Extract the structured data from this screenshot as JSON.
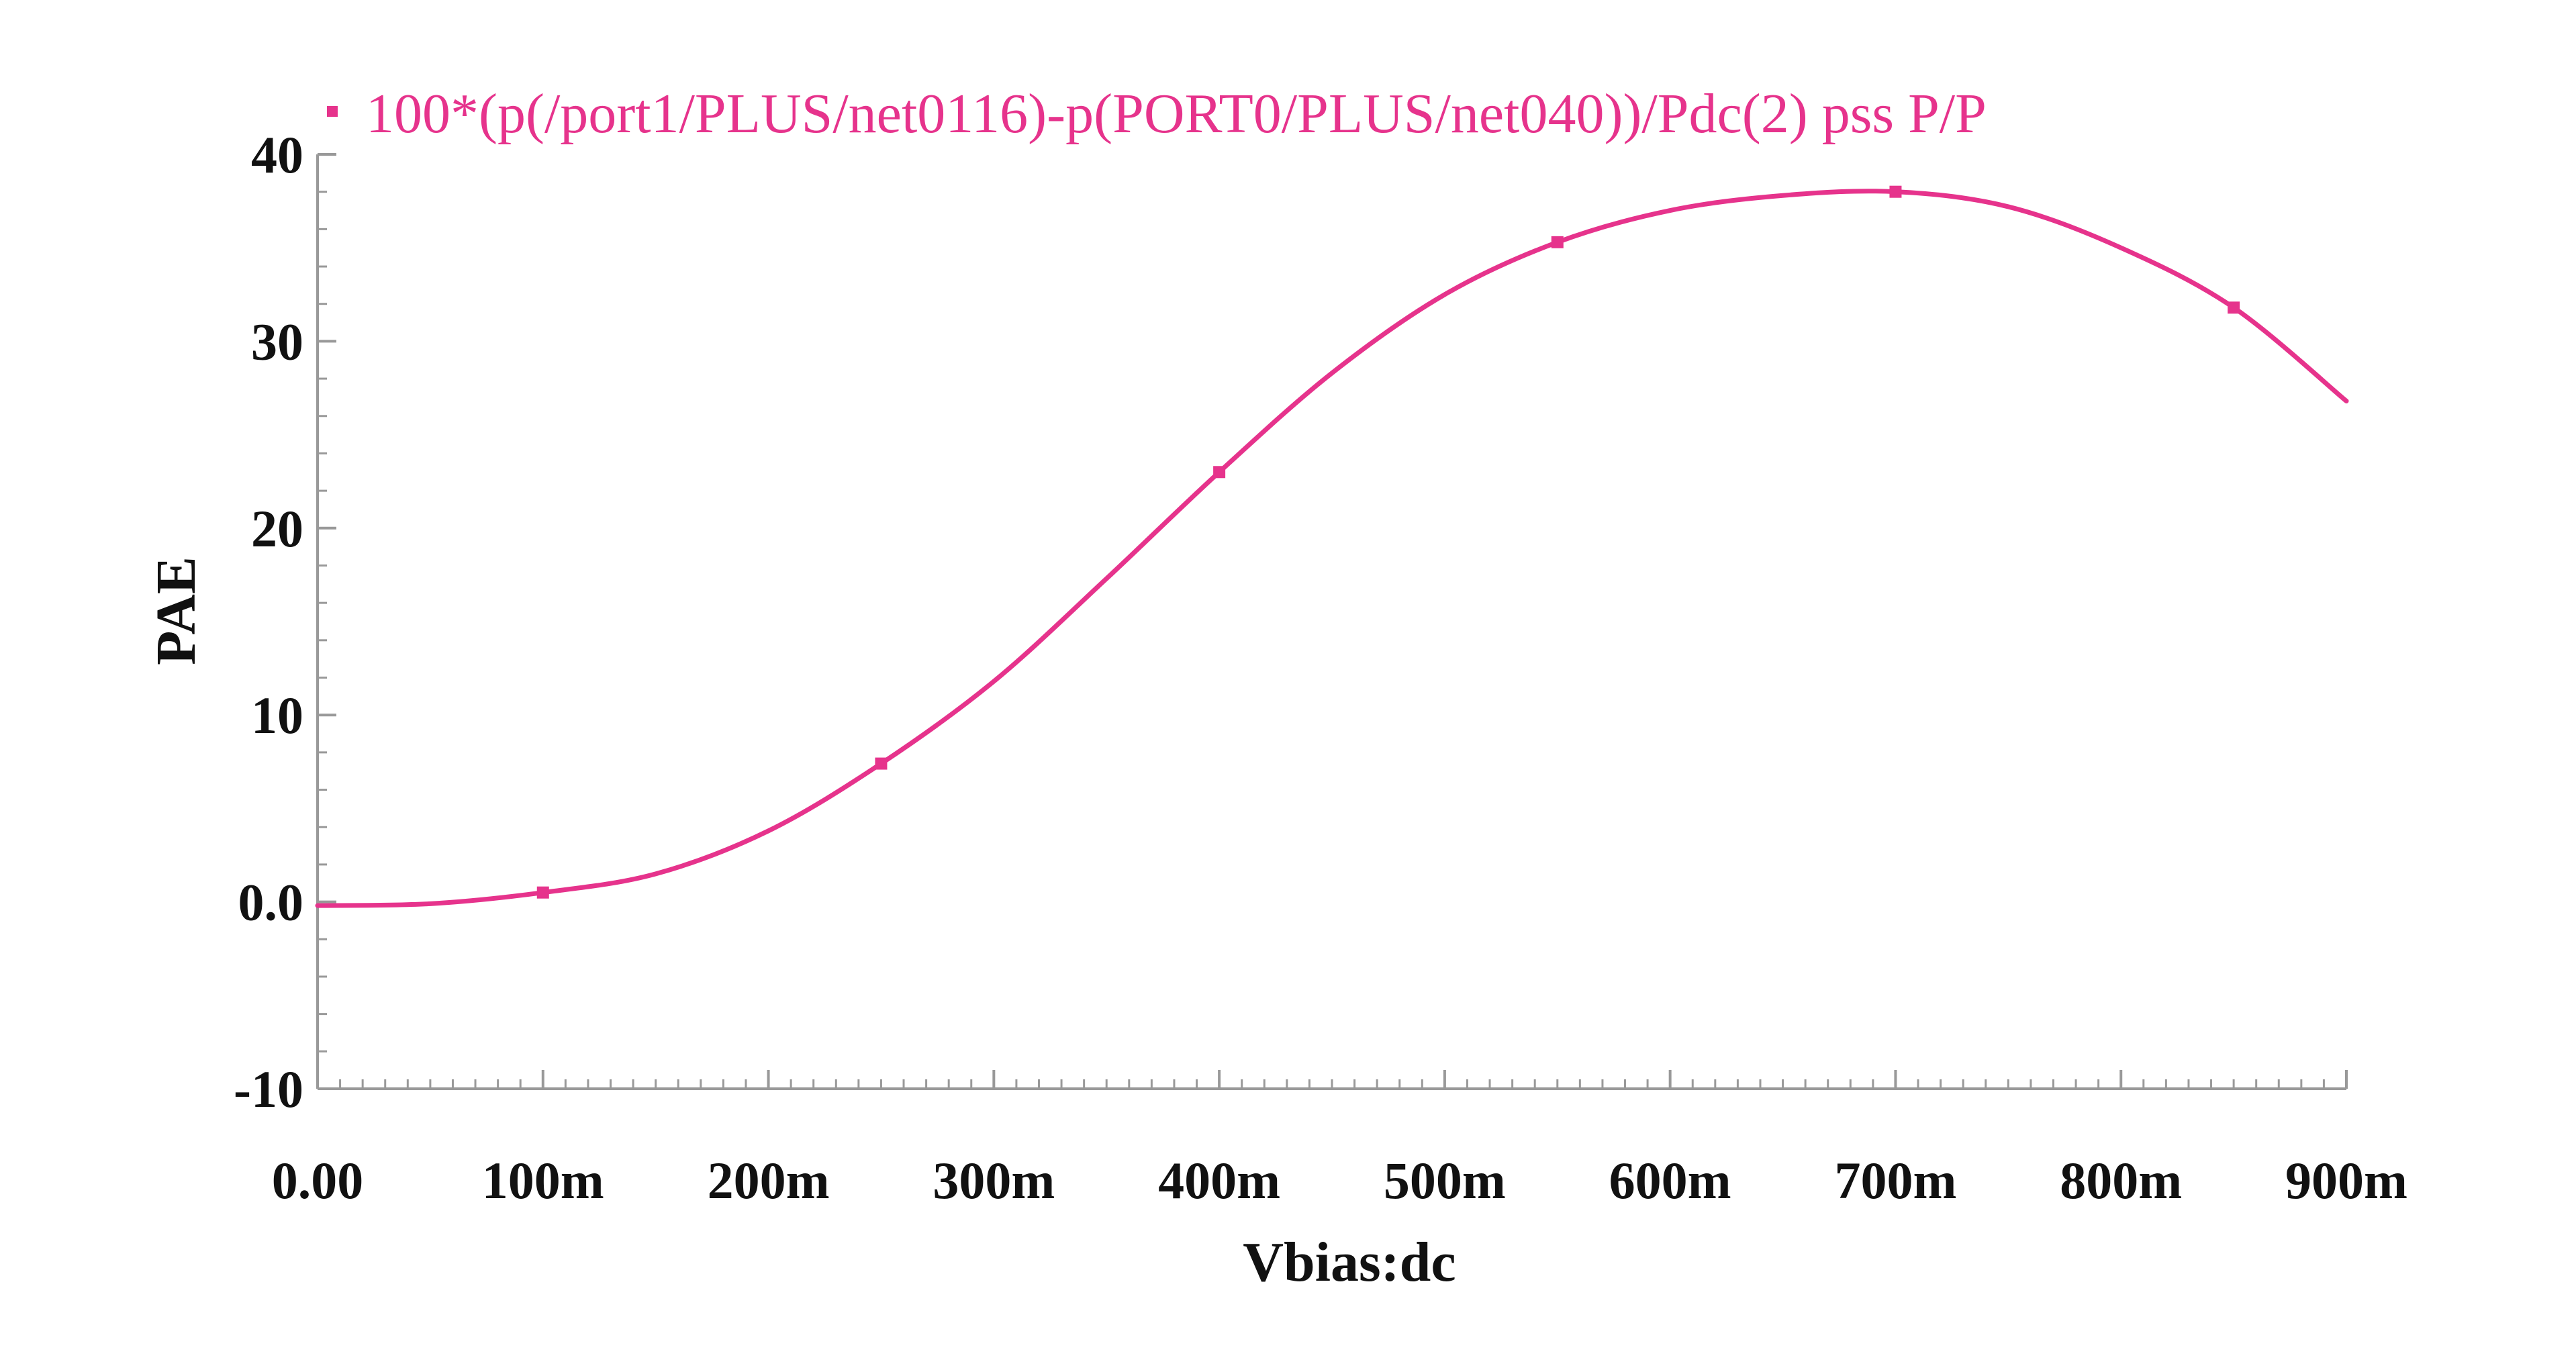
{
  "chart_data": {
    "type": "line",
    "xlabel": "Vbias:dc",
    "ylabel": "PAE",
    "xlim": [
      0,
      0.9
    ],
    "ylim": [
      -10,
      40
    ],
    "x_ticks": [
      0,
      0.1,
      0.2,
      0.3,
      0.4,
      0.5,
      0.6,
      0.7,
      0.8,
      0.9
    ],
    "x_tick_labels": [
      "0.00",
      "100m",
      "200m",
      "300m",
      "400m",
      "500m",
      "600m",
      "700m",
      "800m",
      "900m"
    ],
    "y_ticks": [
      -10,
      0,
      10,
      20,
      30,
      40
    ],
    "y_tick_labels": [
      "-10",
      "0.0",
      "10",
      "20",
      "30",
      "40"
    ],
    "grid": false,
    "legend": "top-left",
    "color": "#e6338c",
    "series": [
      {
        "name": "100*(p(/port1/PLUS/net0116)-p(PORT0/PLUS/net040))/Pdc(2) pss P/P",
        "x": [
          0,
          0.05,
          0.1,
          0.15,
          0.2,
          0.25,
          0.3,
          0.35,
          0.4,
          0.45,
          0.5,
          0.55,
          0.6,
          0.65,
          0.7,
          0.75,
          0.8,
          0.85,
          0.9
        ],
        "y": [
          -0.2,
          -0.1,
          0.5,
          1.5,
          3.8,
          7.4,
          11.8,
          17.3,
          23.0,
          28.3,
          32.5,
          35.3,
          37.0,
          37.8,
          38.0,
          37.2,
          35.0,
          31.8,
          26.8
        ],
        "markers_x": [
          0.1,
          0.25,
          0.4,
          0.55,
          0.7,
          0.85
        ]
      }
    ]
  }
}
